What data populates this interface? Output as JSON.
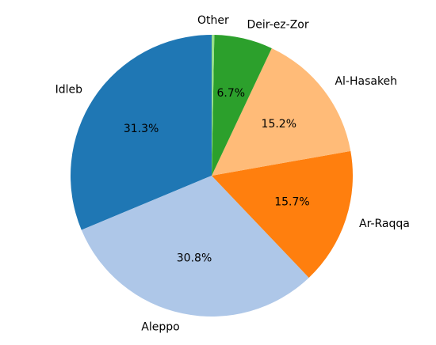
{
  "chart_data": {
    "type": "pie",
    "categories": [
      "Idleb",
      "Aleppo",
      "Ar-Raqqa",
      "Al-Hasakeh",
      "Deir-ez-Zor",
      "Other"
    ],
    "values": [
      31.3,
      30.8,
      15.7,
      15.2,
      6.7,
      0.3
    ],
    "value_labels": [
      "31.3%",
      "30.8%",
      "15.7%",
      "15.2%",
      "6.7%",
      ""
    ],
    "colors": [
      "#1f77b4",
      "#aec7e8",
      "#ff7f0e",
      "#ffbb78",
      "#2ca02c",
      "#98df8a"
    ],
    "start_angle_deg": 90,
    "direction": "counterclockwise",
    "title": "",
    "legend": "none"
  }
}
